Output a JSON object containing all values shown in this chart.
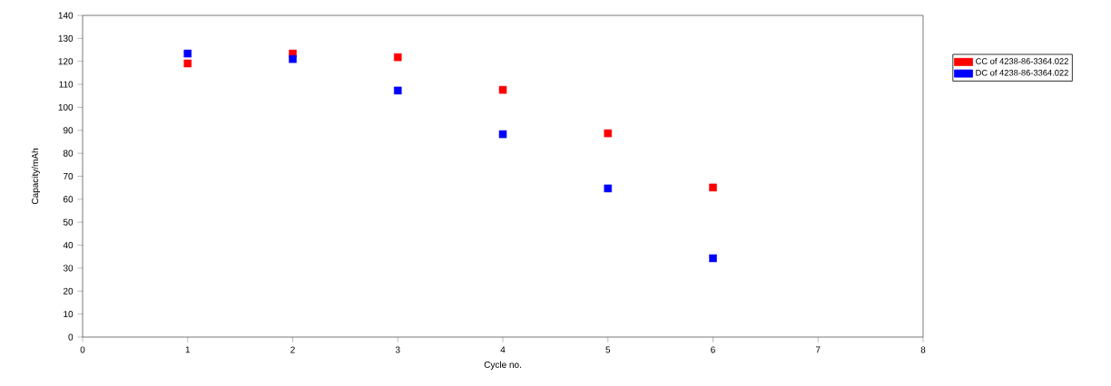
{
  "chart_data": {
    "type": "scatter",
    "xlabel": "Cycle no.",
    "ylabel": "Capacity/mAh",
    "x": [
      1,
      2,
      3,
      4,
      5,
      6
    ],
    "series": [
      {
        "name": "CC of  4238-86-3364.022",
        "color": "#ff0000",
        "values": [
          119.1,
          123.4,
          121.8,
          107.6,
          88.7,
          65.1
        ]
      },
      {
        "name": "DC of  4238-86-3364.022",
        "color": "#0000ff",
        "values": [
          123.4,
          121.0,
          107.3,
          88.3,
          64.7,
          34.3
        ]
      }
    ],
    "xlim": [
      0,
      8
    ],
    "xticks": [
      0,
      1,
      2,
      3,
      4,
      5,
      6,
      7,
      8
    ],
    "ylim": [
      0,
      140
    ],
    "yticks": [
      0,
      10,
      20,
      30,
      40,
      50,
      60,
      70,
      80,
      90,
      100,
      110,
      120,
      130,
      140
    ],
    "marker": "square",
    "legend": "top right",
    "grid": false
  }
}
